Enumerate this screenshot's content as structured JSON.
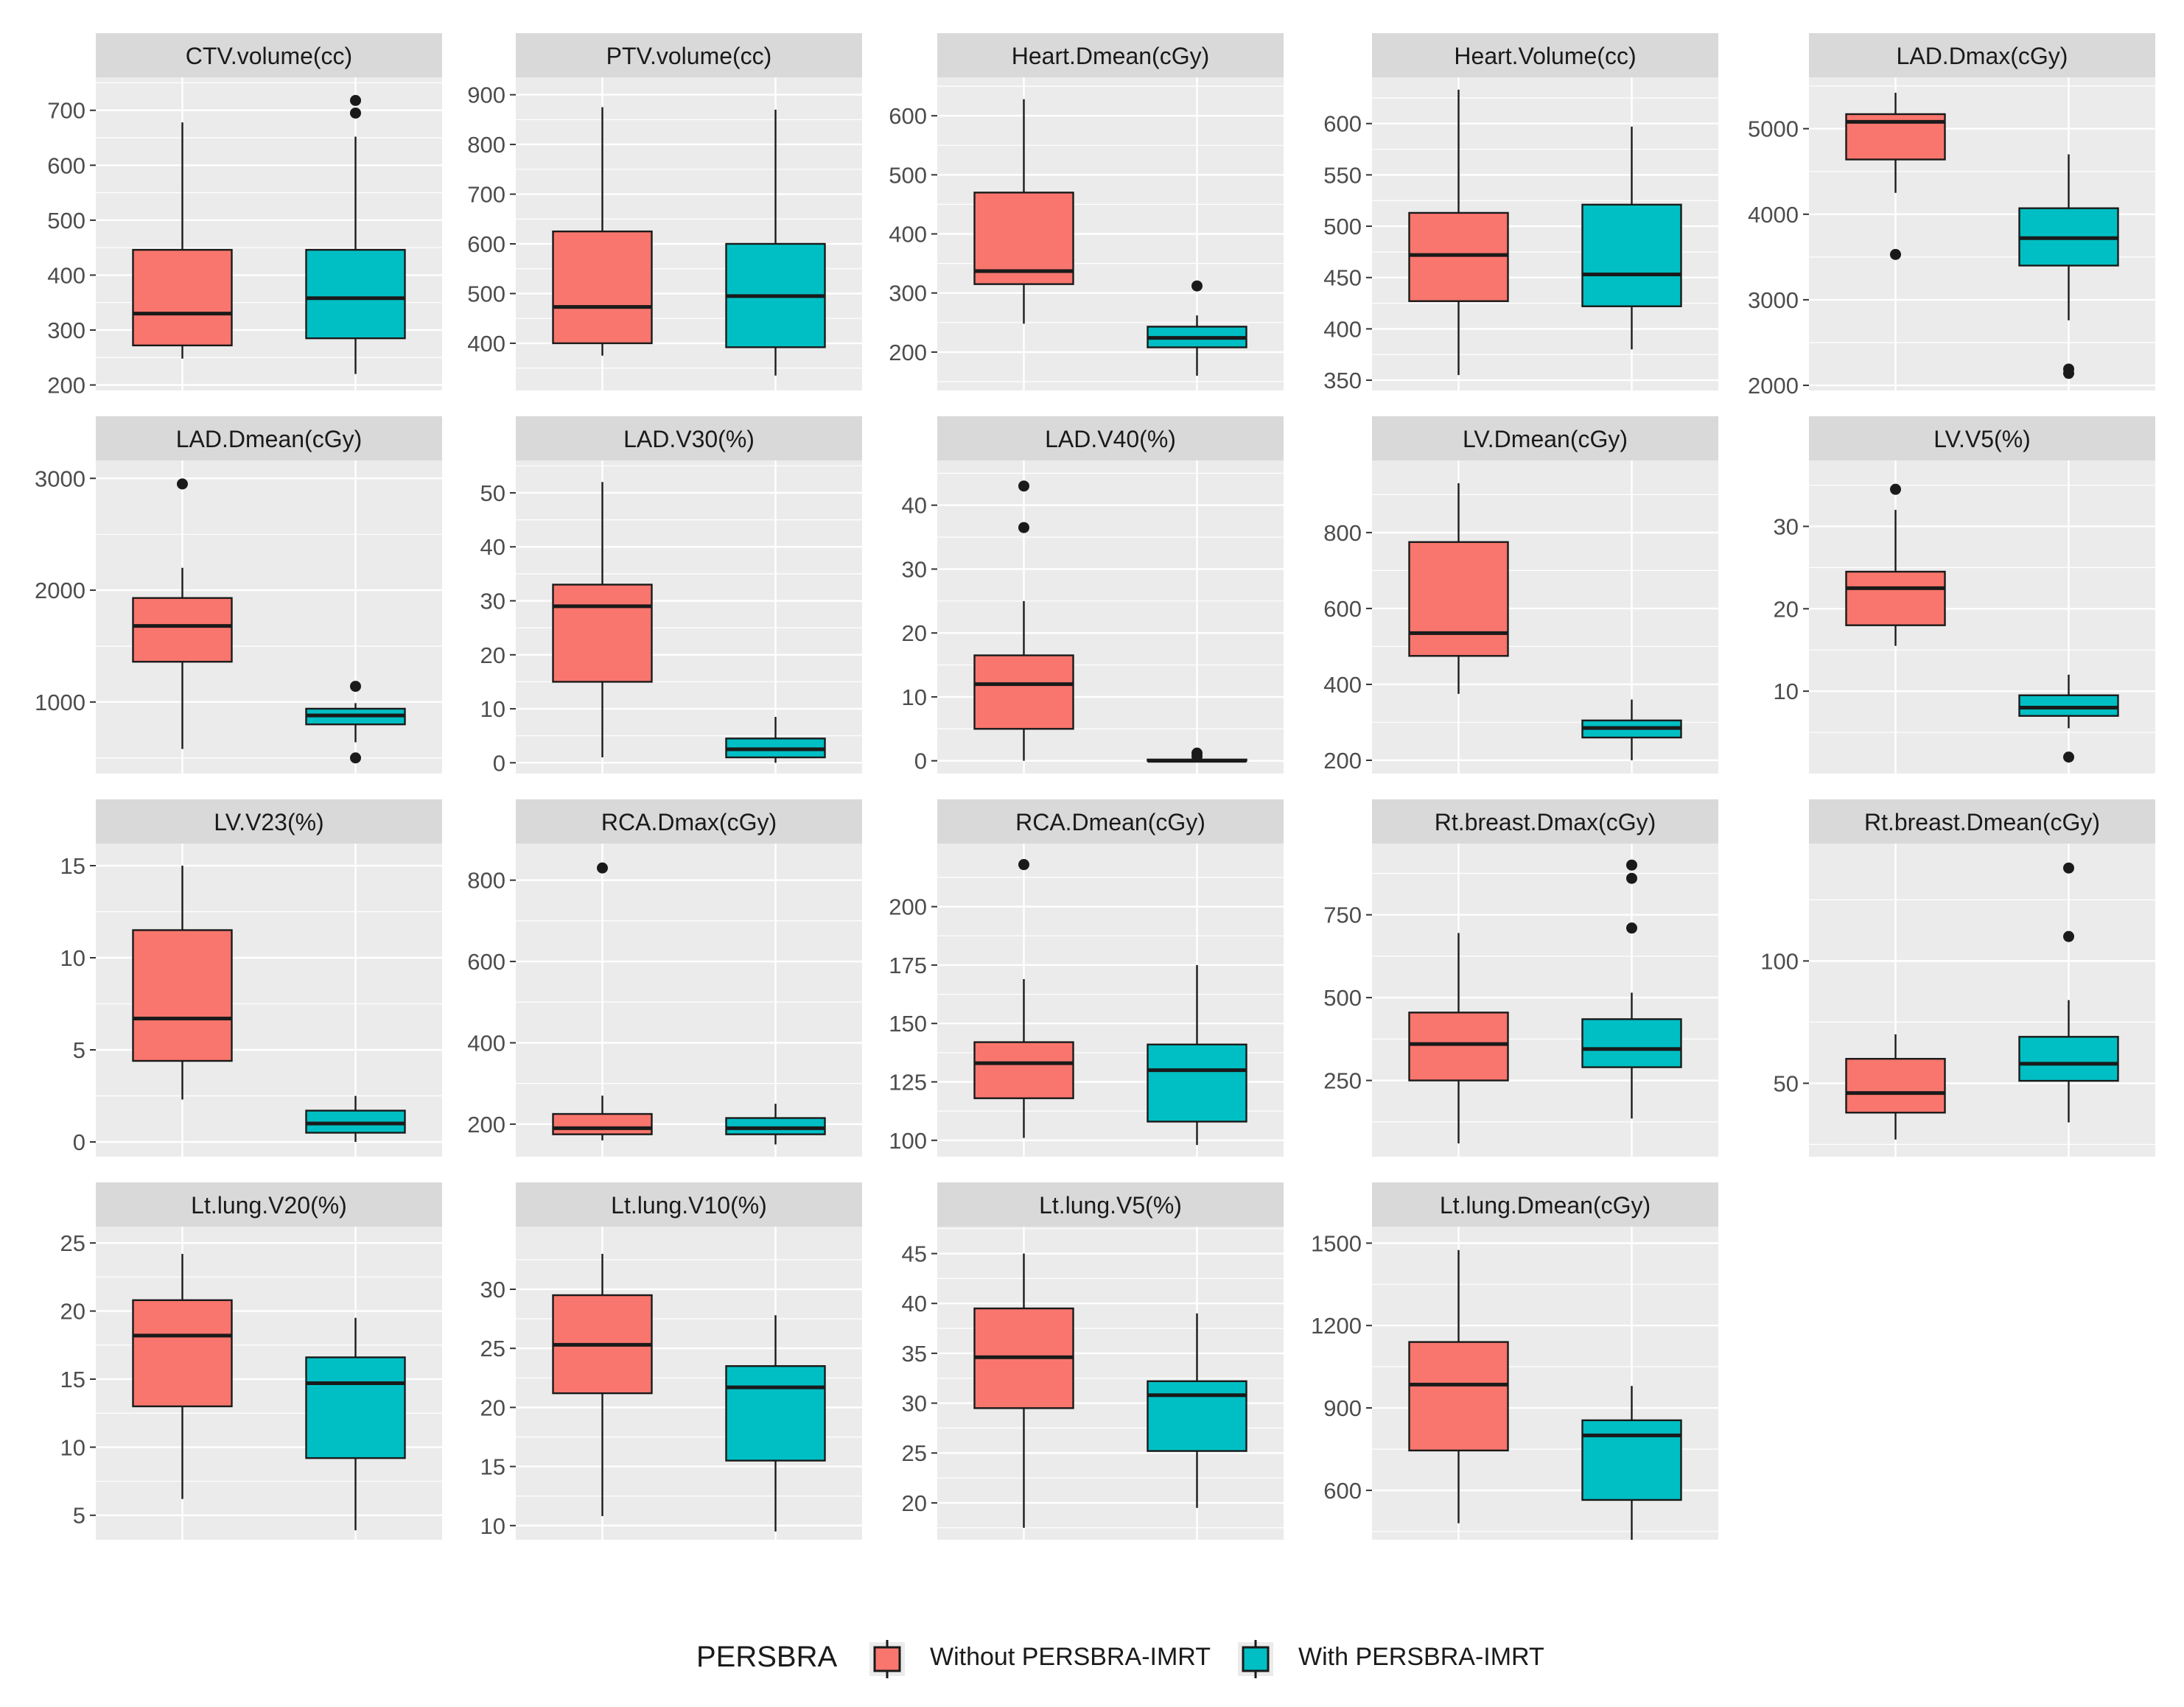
{
  "colors": {
    "panel_bg": "#EBEBEB",
    "grid": "#FFFFFF",
    "strip_bg": "#D9D9D9",
    "strip_text": "#1A1A1A",
    "tick_text": "#4D4D4D",
    "without": "#F8766D",
    "with": "#00BFC4",
    "box_line": "#1A1A1A"
  },
  "legend": {
    "title": "PERSBRA",
    "items": [
      {
        "label": "Without PERSBRA-IMRT",
        "color": "#F8766D"
      },
      {
        "label": "With PERSBRA-IMRT",
        "color": "#00BFC4"
      }
    ]
  },
  "chart_data": [
    {
      "type": "box",
      "title": "CTV.volume(cc)",
      "ylim": [
        190,
        760
      ],
      "yticks": [
        200,
        300,
        400,
        500,
        600,
        700
      ],
      "boxes": [
        {
          "group": "Without PERSBRA-IMRT",
          "min": 248,
          "q1": 272,
          "median": 330,
          "q3": 446,
          "max": 678,
          "outliers": []
        },
        {
          "group": "With PERSBRA-IMRT",
          "min": 220,
          "q1": 285,
          "median": 358,
          "q3": 446,
          "max": 652,
          "outliers": [
            695,
            718
          ]
        }
      ]
    },
    {
      "type": "box",
      "title": "PTV.volume(cc)",
      "ylim": [
        305,
        935
      ],
      "yticks": [
        400,
        500,
        600,
        700,
        800,
        900
      ],
      "boxes": [
        {
          "group": "Without PERSBRA-IMRT",
          "min": 375,
          "q1": 400,
          "median": 473,
          "q3": 625,
          "max": 875,
          "outliers": []
        },
        {
          "group": "With PERSBRA-IMRT",
          "min": 335,
          "q1": 392,
          "median": 495,
          "q3": 600,
          "max": 870,
          "outliers": []
        }
      ]
    },
    {
      "type": "box",
      "title": "Heart.Dmean(cGy)",
      "ylim": [
        135,
        665
      ],
      "yticks": [
        200,
        300,
        400,
        500,
        600
      ],
      "boxes": [
        {
          "group": "Without PERSBRA-IMRT",
          "min": 248,
          "q1": 315,
          "median": 337,
          "q3": 470,
          "max": 628,
          "outliers": []
        },
        {
          "group": "With PERSBRA-IMRT",
          "min": 160,
          "q1": 208,
          "median": 224,
          "q3": 243,
          "max": 262,
          "outliers": [
            312
          ]
        }
      ]
    },
    {
      "type": "box",
      "title": "Heart.Volume(cc)",
      "ylim": [
        340,
        645
      ],
      "yticks": [
        350,
        400,
        450,
        500,
        550,
        600
      ],
      "boxes": [
        {
          "group": "Without PERSBRA-IMRT",
          "min": 355,
          "q1": 427,
          "median": 472,
          "q3": 513,
          "max": 633,
          "outliers": []
        },
        {
          "group": "With PERSBRA-IMRT",
          "min": 380,
          "q1": 422,
          "median": 453,
          "q3": 521,
          "max": 597,
          "outliers": []
        }
      ]
    },
    {
      "type": "box",
      "title": "LAD.Dmax(cGy)",
      "ylim": [
        1940,
        5600
      ],
      "yticks": [
        2000,
        3000,
        4000,
        5000
      ],
      "boxes": [
        {
          "group": "Without PERSBRA-IMRT",
          "min": 4250,
          "q1": 4640,
          "median": 5080,
          "q3": 5170,
          "max": 5420,
          "outliers": [
            3530
          ]
        },
        {
          "group": "With PERSBRA-IMRT",
          "min": 2760,
          "q1": 3400,
          "median": 3720,
          "q3": 4070,
          "max": 4700,
          "outliers": [
            2140,
            2190
          ]
        }
      ]
    },
    {
      "type": "box",
      "title": "LAD.Dmean(cGy)",
      "ylim": [
        360,
        3160
      ],
      "yticks": [
        1000,
        2000,
        3000
      ],
      "boxes": [
        {
          "group": "Without PERSBRA-IMRT",
          "min": 580,
          "q1": 1360,
          "median": 1680,
          "q3": 1930,
          "max": 2200,
          "outliers": [
            2950
          ]
        },
        {
          "group": "With PERSBRA-IMRT",
          "min": 640,
          "q1": 800,
          "median": 880,
          "q3": 940,
          "max": 990,
          "outliers": [
            1140,
            500
          ]
        }
      ]
    },
    {
      "type": "box",
      "title": "LAD.V30(%)",
      "ylim": [
        -2,
        56
      ],
      "yticks": [
        0,
        10,
        20,
        30,
        40,
        50
      ],
      "boxes": [
        {
          "group": "Without PERSBRA-IMRT",
          "min": 1,
          "q1": 15,
          "median": 29,
          "q3": 33,
          "max": 52,
          "outliers": []
        },
        {
          "group": "With PERSBRA-IMRT",
          "min": 0,
          "q1": 1,
          "median": 2.5,
          "q3": 4.5,
          "max": 8.5,
          "outliers": []
        }
      ]
    },
    {
      "type": "box",
      "title": "LAD.V40(%)",
      "ylim": [
        -2,
        47
      ],
      "yticks": [
        0,
        10,
        20,
        30,
        40
      ],
      "boxes": [
        {
          "group": "Without PERSBRA-IMRT",
          "min": 0,
          "q1": 5,
          "median": 12,
          "q3": 16.5,
          "max": 25,
          "outliers": [
            43,
            36.5
          ]
        },
        {
          "group": "With PERSBRA-IMRT",
          "min": 0,
          "q1": 0,
          "median": 0,
          "q3": 0.2,
          "max": 0.5,
          "outliers": [
            1.2,
            0.7
          ]
        }
      ]
    },
    {
      "type": "box",
      "title": "LV.Dmean(cGy)",
      "ylim": [
        165,
        990
      ],
      "yticks": [
        200,
        400,
        600,
        800
      ],
      "boxes": [
        {
          "group": "Without PERSBRA-IMRT",
          "min": 375,
          "q1": 475,
          "median": 535,
          "q3": 775,
          "max": 930,
          "outliers": []
        },
        {
          "group": "With PERSBRA-IMRT",
          "min": 200,
          "q1": 260,
          "median": 285,
          "q3": 305,
          "max": 360,
          "outliers": []
        }
      ]
    },
    {
      "type": "box",
      "title": "LV.V5(%)",
      "ylim": [
        0,
        38
      ],
      "yticks": [
        10,
        20,
        30
      ],
      "boxes": [
        {
          "group": "Without PERSBRA-IMRT",
          "min": 15.5,
          "q1": 18,
          "median": 22.5,
          "q3": 24.5,
          "max": 32,
          "outliers": [
            34.5
          ]
        },
        {
          "group": "With PERSBRA-IMRT",
          "min": 5.5,
          "q1": 7,
          "median": 8,
          "q3": 9.5,
          "max": 12,
          "outliers": [
            2
          ]
        }
      ]
    },
    {
      "type": "box",
      "title": "LV.V23(%)",
      "ylim": [
        -0.8,
        16.2
      ],
      "yticks": [
        0,
        5,
        10,
        15
      ],
      "boxes": [
        {
          "group": "Without PERSBRA-IMRT",
          "min": 2.3,
          "q1": 4.4,
          "median": 6.7,
          "q3": 11.5,
          "max": 15,
          "outliers": []
        },
        {
          "group": "With PERSBRA-IMRT",
          "min": 0,
          "q1": 0.5,
          "median": 1,
          "q3": 1.7,
          "max": 2.5,
          "outliers": []
        }
      ]
    },
    {
      "type": "box",
      "title": "RCA.Dmax(cGy)",
      "ylim": [
        120,
        890
      ],
      "yticks": [
        200,
        400,
        600,
        800
      ],
      "boxes": [
        {
          "group": "Without PERSBRA-IMRT",
          "min": 160,
          "q1": 175,
          "median": 190,
          "q3": 225,
          "max": 270,
          "outliers": [
            830
          ]
        },
        {
          "group": "With PERSBRA-IMRT",
          "min": 150,
          "q1": 175,
          "median": 190,
          "q3": 215,
          "max": 250,
          "outliers": []
        }
      ]
    },
    {
      "type": "box",
      "title": "RCA.Dmean(cGy)",
      "ylim": [
        93,
        227
      ],
      "yticks": [
        100,
        125,
        150,
        175,
        200
      ],
      "boxes": [
        {
          "group": "Without PERSBRA-IMRT",
          "min": 101,
          "q1": 118,
          "median": 133,
          "q3": 142,
          "max": 169,
          "outliers": [
            218
          ]
        },
        {
          "group": "With PERSBRA-IMRT",
          "min": 98,
          "q1": 108,
          "median": 130,
          "q3": 141,
          "max": 175,
          "outliers": []
        }
      ]
    },
    {
      "type": "box",
      "title": "Rt.breast.Dmax(cGy)",
      "ylim": [
        20,
        965
      ],
      "yticks": [
        250,
        500,
        750
      ],
      "boxes": [
        {
          "group": "Without PERSBRA-IMRT",
          "min": 60,
          "q1": 250,
          "median": 360,
          "q3": 455,
          "max": 695,
          "outliers": []
        },
        {
          "group": "With PERSBRA-IMRT",
          "min": 135,
          "q1": 290,
          "median": 345,
          "q3": 435,
          "max": 515,
          "outliers": [
            900,
            860,
            710
          ]
        }
      ]
    },
    {
      "type": "box",
      "title": "Rt.breast.Dmean(cGy)",
      "ylim": [
        20,
        148
      ],
      "yticks": [
        50,
        100
      ],
      "boxes": [
        {
          "group": "Without PERSBRA-IMRT",
          "min": 27,
          "q1": 38,
          "median": 46,
          "q3": 60,
          "max": 70,
          "outliers": []
        },
        {
          "group": "With PERSBRA-IMRT",
          "min": 34,
          "q1": 51,
          "median": 58,
          "q3": 69,
          "max": 84,
          "outliers": [
            138,
            110
          ]
        }
      ]
    },
    {
      "type": "box",
      "title": "Lt.lung.V20(%)",
      "ylim": [
        3.2,
        26.2
      ],
      "yticks": [
        5,
        10,
        15,
        20,
        25
      ],
      "boxes": [
        {
          "group": "Without PERSBRA-IMRT",
          "min": 6.2,
          "q1": 13,
          "median": 18.2,
          "q3": 20.8,
          "max": 24.2,
          "outliers": []
        },
        {
          "group": "With PERSBRA-IMRT",
          "min": 3.9,
          "q1": 9.2,
          "median": 14.7,
          "q3": 16.6,
          "max": 19.5,
          "outliers": []
        }
      ]
    },
    {
      "type": "box",
      "title": "Lt.lung.V10(%)",
      "ylim": [
        8.8,
        35.3
      ],
      "yticks": [
        10,
        15,
        20,
        25,
        30
      ],
      "boxes": [
        {
          "group": "Without PERSBRA-IMRT",
          "min": 10.8,
          "q1": 21.2,
          "median": 25.3,
          "q3": 29.5,
          "max": 33,
          "outliers": []
        },
        {
          "group": "With PERSBRA-IMRT",
          "min": 9.5,
          "q1": 15.5,
          "median": 21.7,
          "q3": 23.5,
          "max": 27.8,
          "outliers": []
        }
      ]
    },
    {
      "type": "box",
      "title": "Lt.lung.V5(%)",
      "ylim": [
        16.3,
        47.7
      ],
      "yticks": [
        20,
        25,
        30,
        35,
        40,
        45
      ],
      "boxes": [
        {
          "group": "Without PERSBRA-IMRT",
          "min": 17.5,
          "q1": 29.5,
          "median": 34.6,
          "q3": 39.5,
          "max": 45,
          "outliers": []
        },
        {
          "group": "With PERSBRA-IMRT",
          "min": 19.5,
          "q1": 25.2,
          "median": 30.8,
          "q3": 32.2,
          "max": 39,
          "outliers": []
        }
      ]
    },
    {
      "type": "box",
      "title": "Lt.lung.Dmean(cGy)",
      "ylim": [
        420,
        1560
      ],
      "yticks": [
        600,
        900,
        1200,
        1500
      ],
      "boxes": [
        {
          "group": "Without PERSBRA-IMRT",
          "min": 480,
          "q1": 745,
          "median": 985,
          "q3": 1140,
          "max": 1475,
          "outliers": []
        },
        {
          "group": "With PERSBRA-IMRT",
          "min": 420,
          "q1": 565,
          "median": 800,
          "q3": 855,
          "max": 980,
          "outliers": []
        }
      ]
    }
  ]
}
